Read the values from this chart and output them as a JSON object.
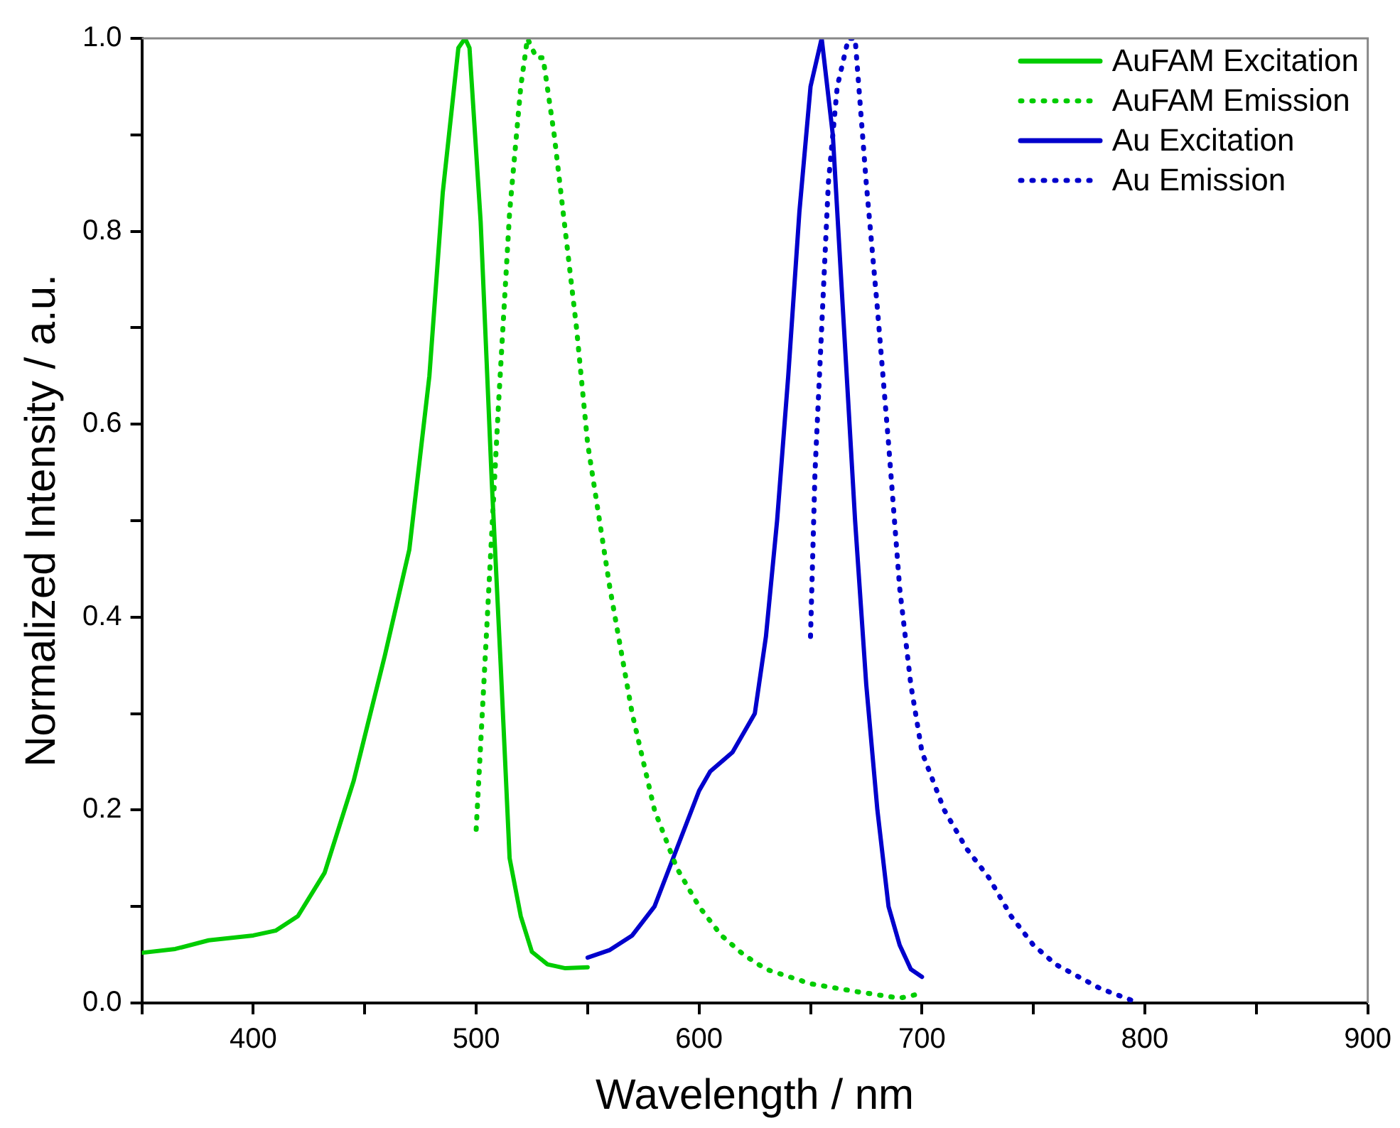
{
  "chart_data": {
    "type": "line",
    "xlabel": "Wavelength / nm",
    "ylabel": "Normalized Intensity / a.u.",
    "xlim": [
      350,
      900
    ],
    "ylim": [
      0,
      1
    ],
    "xticks": [
      {
        "value": 350,
        "label": null
      },
      400,
      {
        "value": 450,
        "label": null
      },
      500,
      {
        "value": 550,
        "label": null
      },
      600,
      {
        "value": 650,
        "label": null
      },
      700,
      {
        "value": 750,
        "label": null
      },
      800,
      {
        "value": 850,
        "label": null
      },
      900
    ],
    "yticks": [
      "0.0",
      {
        "value": 0.1,
        "label": null
      },
      0.2,
      {
        "value": 0.3,
        "label": null
      },
      0.4,
      {
        "value": 0.5,
        "label": null
      },
      0.6,
      {
        "value": 0.7,
        "label": null
      },
      0.8,
      {
        "value": 0.9,
        "label": null
      },
      "1.0"
    ],
    "grid": false,
    "legend": "top right",
    "marker": "none",
    "series": [
      {
        "name": "AuFAM Excitation",
        "color": "#00cc00",
        "line_style": "solid",
        "x": [
          350,
          365,
          380,
          400,
          410,
          420,
          432,
          445,
          459,
          470,
          479,
          485,
          492,
          495,
          497,
          502,
          507,
          511,
          515,
          520,
          525,
          532,
          540,
          550
        ],
        "values": [
          0.052,
          0.056,
          0.065,
          0.07,
          0.075,
          0.09,
          0.135,
          0.23,
          0.36,
          0.47,
          0.65,
          0.84,
          0.99,
          1.0,
          0.99,
          0.81,
          0.54,
          0.35,
          0.15,
          0.09,
          0.053,
          0.04,
          0.036,
          0.037
        ]
      },
      {
        "name": "AuFAM Emission",
        "color": "#00cc00",
        "line_style": "dotted",
        "x": [
          500,
          505,
          510,
          515,
          520,
          523,
          527,
          530,
          535,
          540,
          545,
          550,
          560,
          570,
          580,
          590,
          600,
          610,
          620,
          630,
          650,
          670,
          690,
          700
        ],
        "values": [
          0.18,
          0.4,
          0.62,
          0.82,
          0.95,
          1.0,
          0.98,
          0.98,
          0.9,
          0.8,
          0.7,
          0.58,
          0.43,
          0.3,
          0.2,
          0.14,
          0.1,
          0.07,
          0.05,
          0.035,
          0.02,
          0.012,
          0.005,
          0.01
        ]
      },
      {
        "name": "Au Excitation",
        "color": "#0000cc",
        "line_style": "solid",
        "x": [
          550,
          560,
          570,
          580,
          590,
          600,
          605,
          615,
          625,
          630,
          635,
          640,
          645,
          650,
          655,
          660,
          665,
          670,
          675,
          680,
          685,
          690,
          695,
          700
        ],
        "values": [
          0.047,
          0.055,
          0.07,
          0.1,
          0.16,
          0.22,
          0.24,
          0.26,
          0.3,
          0.38,
          0.5,
          0.65,
          0.82,
          0.95,
          1.0,
          0.9,
          0.7,
          0.5,
          0.33,
          0.2,
          0.1,
          0.06,
          0.035,
          0.027
        ]
      },
      {
        "name": "Au Emission",
        "color": "#0000cc",
        "line_style": "dotted",
        "x": [
          650,
          652,
          655,
          658,
          662,
          667,
          670,
          675,
          680,
          685,
          690,
          695,
          700,
          710,
          720,
          730,
          740,
          750,
          760,
          780,
          795
        ],
        "values": [
          0.38,
          0.55,
          0.7,
          0.85,
          0.95,
          1.0,
          1.0,
          0.85,
          0.72,
          0.58,
          0.43,
          0.33,
          0.26,
          0.2,
          0.16,
          0.13,
          0.09,
          0.06,
          0.04,
          0.015,
          0.002
        ]
      }
    ]
  }
}
